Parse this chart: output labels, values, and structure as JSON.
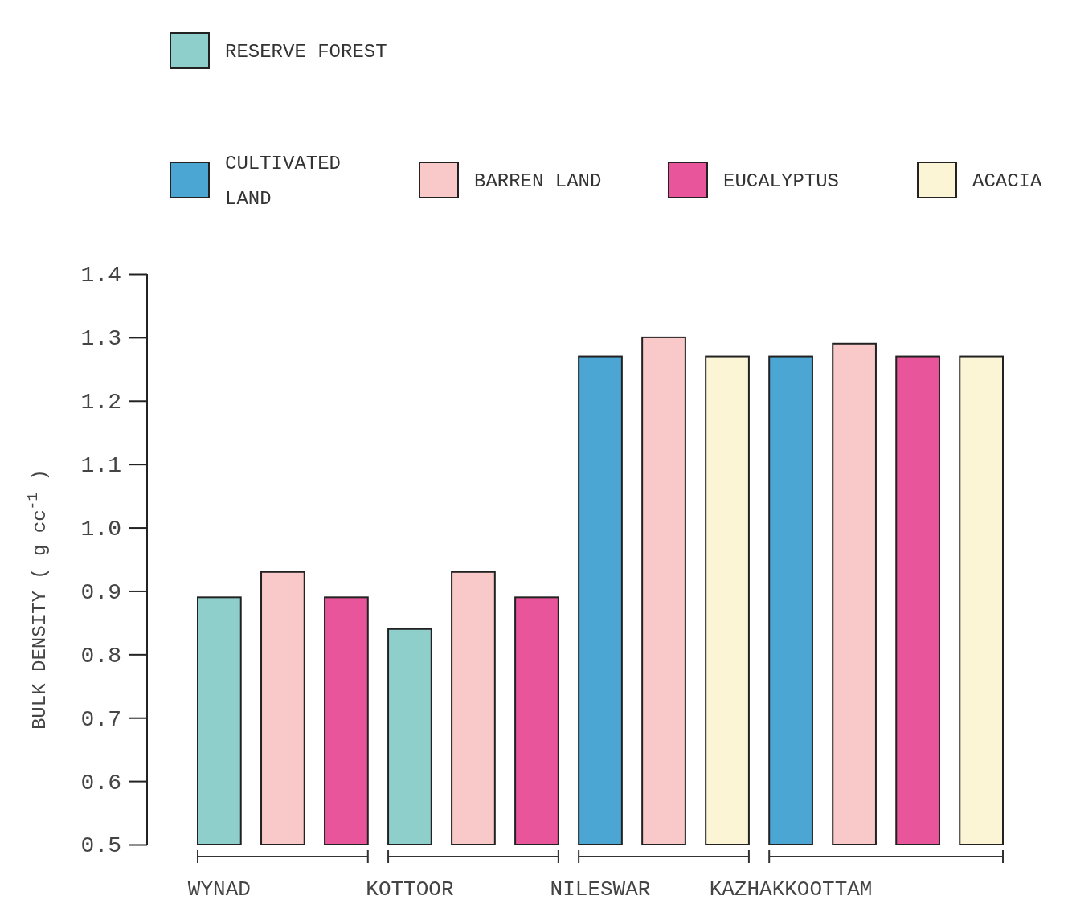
{
  "chart_data": {
    "type": "bar",
    "ylabel": "BULK DENSITY ( g cc$^{-1}$ )",
    "categories": [
      "WYNAD",
      null,
      null,
      "KOTTOOR",
      null,
      null,
      "NILESWAR",
      null,
      null,
      "KAZHAKKOOTTAM",
      null,
      null,
      null
    ],
    "series": [
      {
        "name": "RESERVE FOREST",
        "color": "#8fcfcb",
        "values": [
          0.89,
          null,
          null,
          0.84,
          null,
          null,
          null,
          null,
          null,
          null,
          null,
          null,
          null
        ]
      },
      {
        "name": "CULTIVATED LAND",
        "color": "#4ba6d4",
        "values": [
          null,
          null,
          null,
          null,
          null,
          null,
          1.27,
          null,
          null,
          1.27,
          null,
          null,
          null
        ]
      },
      {
        "name": "BARREN LAND",
        "color": "#f9c8c8",
        "values": [
          null,
          0.93,
          null,
          null,
          0.93,
          null,
          null,
          1.3,
          null,
          null,
          1.29,
          null,
          null
        ]
      },
      {
        "name": "EUCALYPTUS",
        "color": "#e8559a",
        "values": [
          null,
          null,
          0.89,
          null,
          null,
          0.89,
          null,
          null,
          null,
          null,
          null,
          1.27,
          null
        ]
      },
      {
        "name": "ACACIA",
        "color": "#fbf5d5",
        "values": [
          null,
          null,
          null,
          null,
          null,
          null,
          null,
          null,
          1.27,
          null,
          null,
          null,
          1.27
        ]
      }
    ],
    "ylim": [
      0.5,
      1.4
    ],
    "yticks": [
      {
        "value": 0.5,
        "label": "0.5"
      },
      {
        "value": 0.6,
        "label": "0.6"
      },
      {
        "value": 0.7,
        "label": "0.7"
      },
      {
        "value": 0.8,
        "label": "0.8"
      },
      {
        "value": 0.9,
        "label": "0.9"
      },
      {
        "value": 1.0,
        "label": "1.0"
      },
      {
        "value": 1.1,
        "label": "1.1"
      },
      {
        "value": 1.2,
        "label": "1.2"
      },
      {
        "value": 1.3,
        "label": "1.3"
      },
      {
        "value": 1.4,
        "label": "1.4"
      }
    ],
    "grid": false,
    "legend": "top"
  }
}
